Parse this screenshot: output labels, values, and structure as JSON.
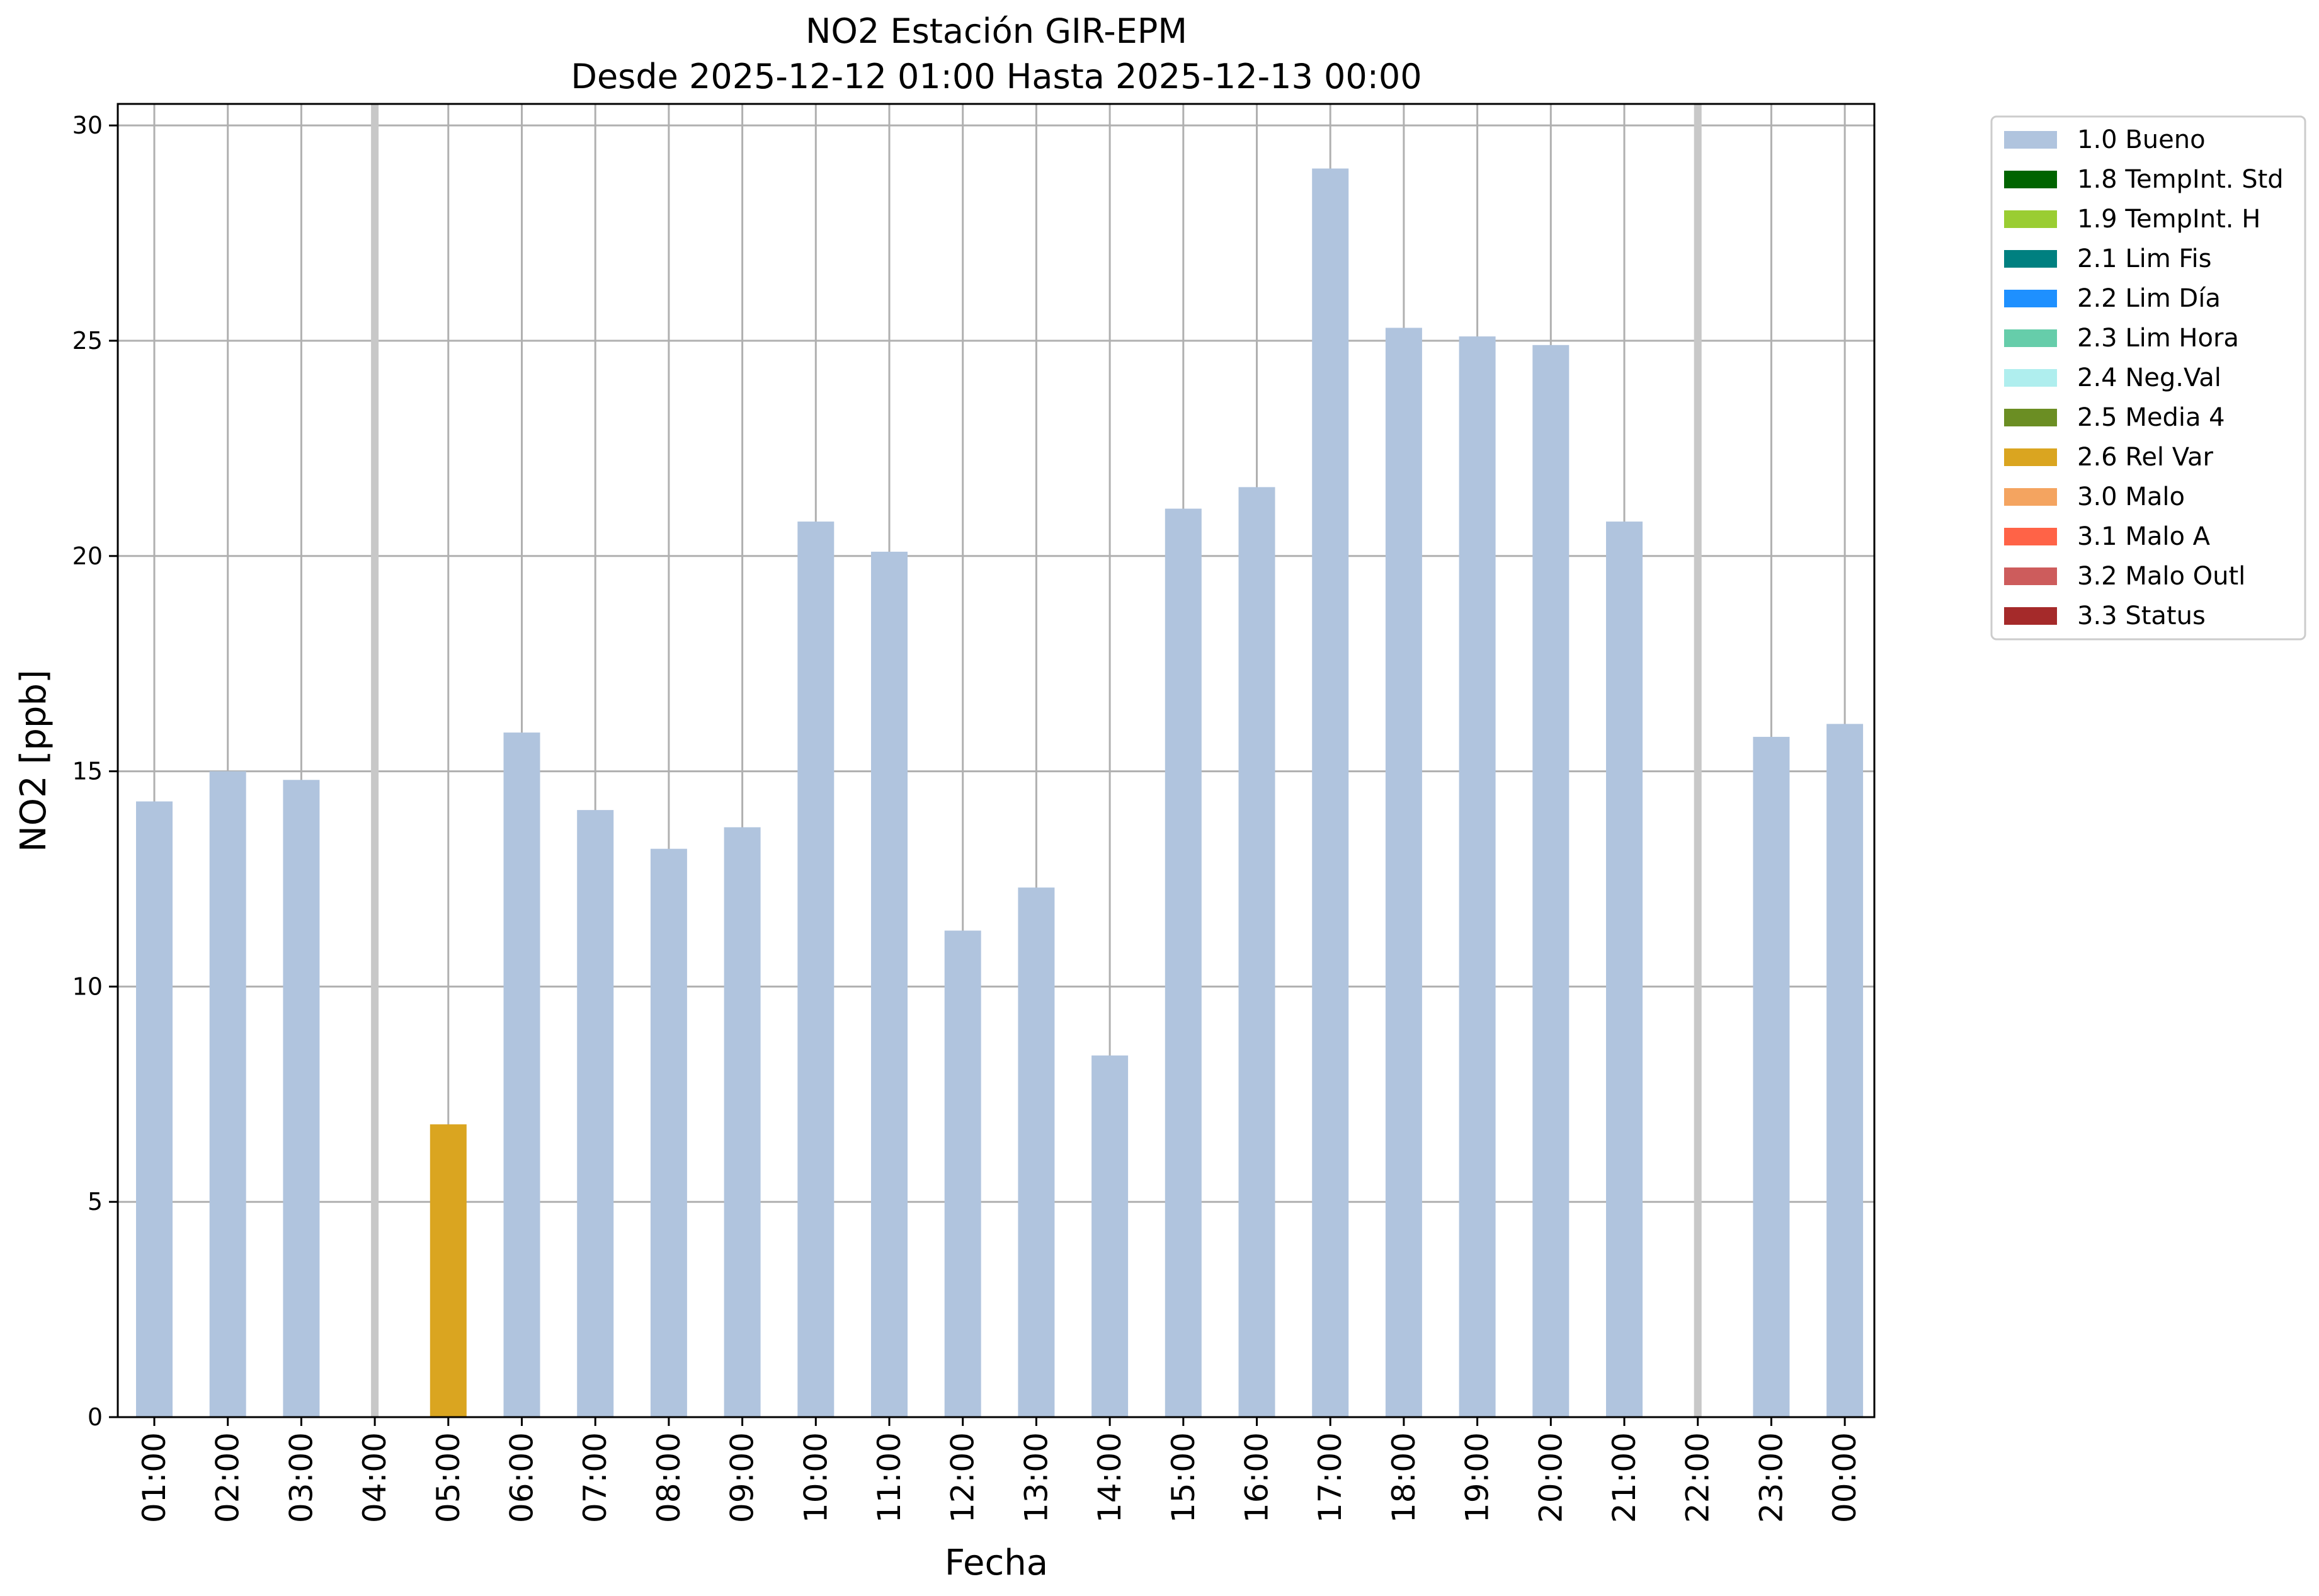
{
  "chart_data": {
    "type": "bar",
    "title": "NO2 Estación GIR-EPM",
    "subtitle": "Desde 2025-12-12 01:00 Hasta 2025-12-13 00:00",
    "xlabel": "Fecha",
    "ylabel": "NO2 [ppb]",
    "ylim": [
      0,
      30.5
    ],
    "yticks": [
      0,
      5,
      10,
      15,
      20,
      25,
      30
    ],
    "grid": true,
    "legend_position": "outside-top-right",
    "categories": [
      "01:00",
      "02:00",
      "03:00",
      "04:00",
      "05:00",
      "06:00",
      "07:00",
      "08:00",
      "09:00",
      "10:00",
      "11:00",
      "12:00",
      "13:00",
      "14:00",
      "15:00",
      "16:00",
      "17:00",
      "18:00",
      "19:00",
      "20:00",
      "21:00",
      "22:00",
      "23:00",
      "00:00"
    ],
    "values": [
      14.3,
      15.0,
      14.8,
      null,
      6.8,
      15.9,
      14.1,
      13.2,
      13.7,
      20.8,
      20.1,
      11.3,
      12.3,
      8.4,
      21.1,
      21.6,
      29.0,
      25.3,
      25.1,
      24.9,
      20.8,
      null,
      15.8,
      16.1
    ],
    "flags": [
      "1.0 Bueno",
      "1.0 Bueno",
      "1.0 Bueno",
      null,
      "2.6 Rel Var",
      "1.0 Bueno",
      "1.0 Bueno",
      "1.0 Bueno",
      "1.0 Bueno",
      "1.0 Bueno",
      "1.0 Bueno",
      "1.0 Bueno",
      "1.0 Bueno",
      "1.0 Bueno",
      "1.0 Bueno",
      "1.0 Bueno",
      "1.0 Bueno",
      "1.0 Bueno",
      "1.0 Bueno",
      "1.0 Bueno",
      "1.0 Bueno",
      null,
      "1.0 Bueno",
      "1.0 Bueno"
    ],
    "missing_marker_color": "#c8c8c8",
    "legend": [
      {
        "label": "1.0 Bueno",
        "color": "#b0c4de"
      },
      {
        "label": "1.8 TempInt. Std",
        "color": "#006400"
      },
      {
        "label": "1.9 TempInt. H",
        "color": "#9acd32"
      },
      {
        "label": "2.1 Lim Fis",
        "color": "#008080"
      },
      {
        "label": "2.2 Lim Día",
        "color": "#1e90ff"
      },
      {
        "label": "2.3 Lim Hora",
        "color": "#66cdaa"
      },
      {
        "label": "2.4 Neg.Val",
        "color": "#afeeee"
      },
      {
        "label": "2.5 Media 4",
        "color": "#6b8e23"
      },
      {
        "label": "2.6 Rel Var",
        "color": "#daa520"
      },
      {
        "label": "3.0 Malo",
        "color": "#f4a460"
      },
      {
        "label": "3.1 Malo A",
        "color": "#ff6347"
      },
      {
        "label": "3.2 Malo Outl",
        "color": "#cd5c5c"
      },
      {
        "label": "3.3 Status",
        "color": "#a52a2a"
      }
    ]
  }
}
